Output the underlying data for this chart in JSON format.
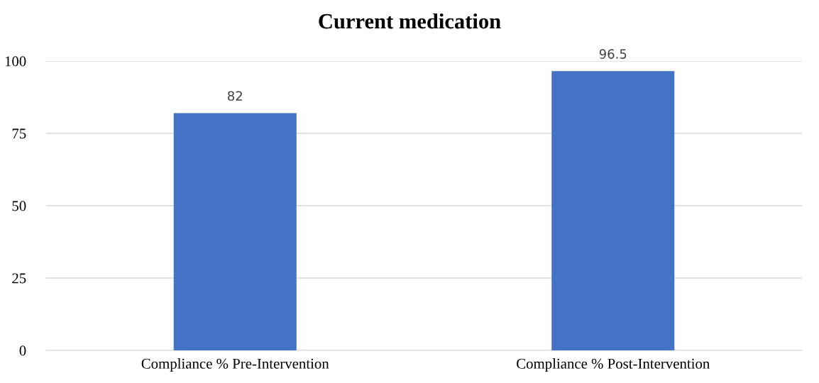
{
  "chart_data": {
    "type": "bar",
    "title": "Current medication",
    "categories": [
      "Compliance % Pre-Intervention",
      "Compliance % Post-Intervention"
    ],
    "values": [
      82,
      96.5
    ],
    "color": "#4472c4",
    "ylim": [
      0,
      100
    ],
    "yticks": [
      0,
      25,
      50,
      75,
      100
    ],
    "grid": "y",
    "data_labels": true
  }
}
